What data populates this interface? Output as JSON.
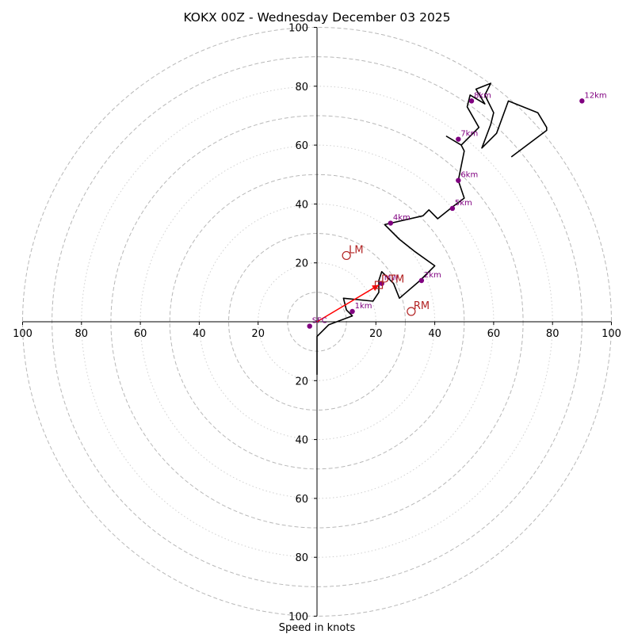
{
  "chart_data": {
    "type": "hodograph",
    "title": "KOKX 00Z - Wednesday December 03 2025",
    "xlabel": "Speed in knots",
    "units": "knots",
    "axis_range": [
      -100,
      100
    ],
    "major_rings": [
      10,
      30,
      50,
      70,
      90,
      100
    ],
    "minor_rings": [
      20,
      40,
      60,
      80
    ],
    "x_ticks": [
      {
        "value": -100,
        "label": "100"
      },
      {
        "value": -80,
        "label": "80"
      },
      {
        "value": -60,
        "label": "60"
      },
      {
        "value": -40,
        "label": "40"
      },
      {
        "value": -20,
        "label": "20"
      },
      {
        "value": 20,
        "label": "20"
      },
      {
        "value": 40,
        "label": "40"
      },
      {
        "value": 60,
        "label": "60"
      },
      {
        "value": 80,
        "label": "80"
      },
      {
        "value": 100,
        "label": "100"
      }
    ],
    "y_ticks": [
      {
        "value": 100,
        "label": "100"
      },
      {
        "value": 80,
        "label": "80"
      },
      {
        "value": 60,
        "label": "60"
      },
      {
        "value": 40,
        "label": "40"
      },
      {
        "value": 20,
        "label": "20"
      },
      {
        "value": -20,
        "label": "20"
      },
      {
        "value": -40,
        "label": "40"
      },
      {
        "value": -60,
        "label": "60"
      },
      {
        "value": -80,
        "label": "80"
      },
      {
        "value": -100,
        "label": "100"
      }
    ],
    "wind_trace": {
      "color": "#000000",
      "u": [
        0,
        0,
        4,
        12,
        10,
        9,
        19,
        21,
        21,
        22,
        26,
        28,
        35,
        40,
        33,
        28,
        23,
        36,
        38,
        41,
        46,
        50,
        48,
        50,
        49,
        44,
        49,
        55,
        51,
        52,
        57,
        54,
        59,
        57,
        60,
        59,
        56,
        61,
        65,
        75,
        78,
        78,
        66
      ],
      "v": [
        -18,
        -5,
        -1,
        2,
        4,
        8,
        7,
        10,
        14,
        17,
        13,
        8,
        14,
        19,
        24,
        28,
        33,
        36,
        38,
        35,
        39,
        42,
        48,
        58,
        60,
        63,
        60,
        66,
        73,
        77,
        74,
        79,
        81,
        77,
        71,
        67,
        59,
        64,
        75,
        71,
        66,
        65,
        56
      ]
    },
    "height_markers": [
      {
        "label": "SFC",
        "u": -2.5,
        "v": -1.5
      },
      {
        "label": "1km",
        "u": 12,
        "v": 3.5
      },
      {
        "label": "2km",
        "u": 35.5,
        "v": 14
      },
      {
        "label": "4km",
        "u": 25,
        "v": 33.5
      },
      {
        "label": "5km",
        "u": 46,
        "v": 38.5
      },
      {
        "label": "6km",
        "u": 48,
        "v": 48
      },
      {
        "label": "7km",
        "u": 48,
        "v": 62
      },
      {
        "label": "8km",
        "u": 52.5,
        "v": 75
      },
      {
        "label": "12km",
        "u": 90,
        "v": 75
      },
      {
        "label": "MW",
        "u": 22,
        "v": 13
      }
    ],
    "storm_motion": [
      {
        "label": "LM",
        "u": 10,
        "v": 22.5
      },
      {
        "label": "RM",
        "u": 32,
        "v": 3.5
      },
      {
        "label": "DTM",
        "u": 21,
        "v": 12.5
      }
    ],
    "shear_vector": {
      "color": "#ff0000",
      "from": [
        0,
        0
      ],
      "to": [
        21,
        12.5
      ]
    },
    "colors": {
      "ring": "#b8b8b8",
      "axis": "#000000",
      "trace": "#000000",
      "height": "#800080",
      "motion": "#b22222",
      "shear": "#ff0000"
    }
  }
}
